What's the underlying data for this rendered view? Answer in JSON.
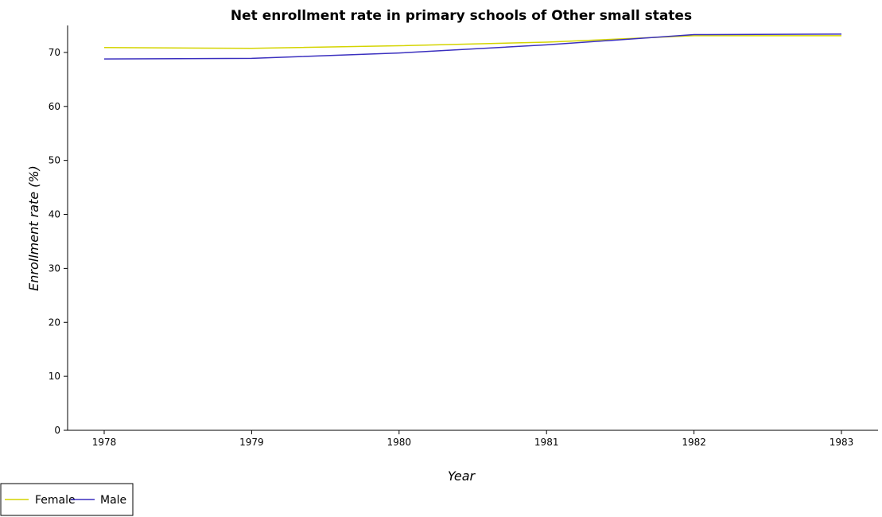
{
  "chart_data": {
    "type": "line",
    "title": "Net enrollment rate in primary schools of Other small states",
    "xlabel": "Year",
    "ylabel": "Enrollment rate (%)",
    "categories": [
      "1978",
      "1979",
      "1980",
      "1981",
      "1982",
      "1983"
    ],
    "ylim": [
      0,
      75
    ],
    "yticks": [
      0,
      10,
      20,
      30,
      40,
      50,
      60,
      70
    ],
    "grid": false,
    "legend_position": "bottom-left",
    "series": [
      {
        "name": "Female",
        "color": "#d4d400",
        "values": [
          70.9,
          70.75,
          71.25,
          71.9,
          73.1,
          73.1
        ]
      },
      {
        "name": "Male",
        "color": "#3a2fbf",
        "values": [
          68.8,
          68.9,
          69.9,
          71.4,
          73.3,
          73.4
        ]
      }
    ]
  }
}
